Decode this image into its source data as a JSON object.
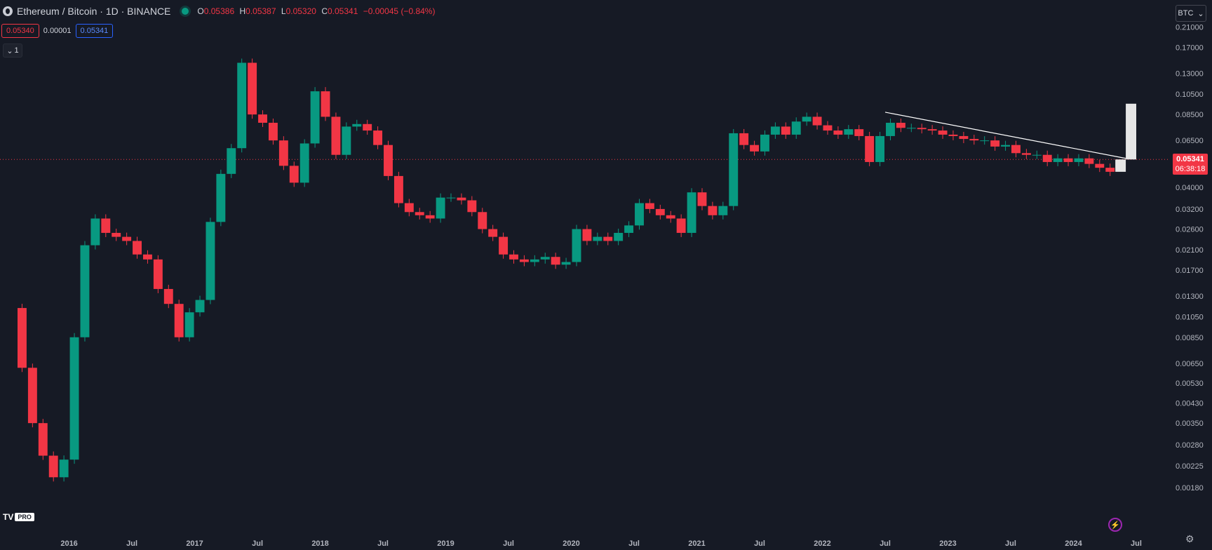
{
  "header": {
    "symbol_title": "Ethereum / Bitcoin · 1D · BINANCE",
    "ohlc": {
      "o_label": "O",
      "o": "0.05386",
      "h_label": "H",
      "h": "0.05387",
      "l_label": "L",
      "l": "0.05320",
      "c_label": "C",
      "c": "0.05341",
      "change": "−0.00045 (−0.84%)"
    },
    "sell_price": "0.05340",
    "spread": "0.00001",
    "buy_price": "0.05341",
    "indicators_toggle": "1",
    "currency": "BTC"
  },
  "last_price": {
    "value": "0.05341",
    "countdown": "06:38:18"
  },
  "logo": {
    "text": "TV",
    "badge": "PRO"
  },
  "icons": [
    "symbol-logo-icon",
    "live-status-icon",
    "chevron-down-icon",
    "settings-gear-icon",
    "flash-icon",
    "tradingview-logo"
  ],
  "colors": {
    "background": "#161a25",
    "up": "#089981",
    "down": "#f23645",
    "projection": "#ffffff",
    "trendline": "#ffffff"
  },
  "chart_data": {
    "type": "line",
    "title": "Ethereum / Bitcoin · 1D · BINANCE",
    "scale": "log",
    "ylim": [
      0.0015,
      0.24
    ],
    "y_ticks": [
      "0.21000",
      "0.17000",
      "0.13000",
      "0.10500",
      "0.08500",
      "0.06500",
      "0.05341",
      "0.04000",
      "0.03200",
      "0.02600",
      "0.02100",
      "0.01700",
      "0.01300",
      "0.01050",
      "0.00850",
      "0.00650",
      "0.00530",
      "0.00430",
      "0.00350",
      "0.00280",
      "0.00225",
      "0.00180"
    ],
    "x_ticks": [
      "2016",
      "Jul",
      "2017",
      "Jul",
      "2018",
      "Jul",
      "2019",
      "Jul",
      "2020",
      "Jul",
      "2021",
      "Jul",
      "2022",
      "Jul",
      "2023",
      "Jul",
      "2024",
      "Jul"
    ],
    "series": [
      {
        "x": [
          "2015-08",
          "2015-09",
          "2015-10",
          "2015-11",
          "2015-12",
          "2016-01",
          "2016-02",
          "2016-03",
          "2016-04",
          "2016-05",
          "2016-06",
          "2016-07",
          "2016-08",
          "2016-09",
          "2016-10",
          "2016-11",
          "2016-12",
          "2017-01",
          "2017-02",
          "2017-03",
          "2017-04",
          "2017-05",
          "2017-06",
          "2017-07",
          "2017-08",
          "2017-09",
          "2017-10",
          "2017-11",
          "2017-12",
          "2018-01",
          "2018-02",
          "2018-03",
          "2018-04",
          "2018-05",
          "2018-06",
          "2018-07",
          "2018-08",
          "2018-09",
          "2018-10",
          "2018-11",
          "2018-12",
          "2019-01",
          "2019-02",
          "2019-03",
          "2019-04",
          "2019-05",
          "2019-06",
          "2019-07",
          "2019-08",
          "2019-09",
          "2019-10",
          "2019-11",
          "2019-12",
          "2020-01",
          "2020-02",
          "2020-03",
          "2020-04",
          "2020-05",
          "2020-06",
          "2020-07",
          "2020-08",
          "2020-09",
          "2020-10",
          "2020-11",
          "2020-12",
          "2021-01",
          "2021-02",
          "2021-03",
          "2021-04",
          "2021-05",
          "2021-06",
          "2021-07",
          "2021-08",
          "2021-09",
          "2021-10",
          "2021-11",
          "2021-12",
          "2022-01",
          "2022-02",
          "2022-03",
          "2022-04",
          "2022-05",
          "2022-06",
          "2022-07",
          "2022-08",
          "2022-09",
          "2022-10",
          "2022-11",
          "2022-12",
          "2023-01",
          "2023-02",
          "2023-03",
          "2023-04",
          "2023-05",
          "2023-06",
          "2023-07",
          "2023-08",
          "2023-09",
          "2023-10",
          "2023-11",
          "2023-12",
          "2024-01",
          "2024-02",
          "2024-03",
          "2024-04",
          "2024-05"
        ],
        "values": [
          0.0115,
          0.0062,
          0.0035,
          0.0025,
          0.002,
          0.0024,
          0.0085,
          0.022,
          0.029,
          0.025,
          0.024,
          0.023,
          0.02,
          0.019,
          0.014,
          0.012,
          0.0085,
          0.011,
          0.0125,
          0.028,
          0.046,
          0.06,
          0.145,
          0.085,
          0.078,
          0.065,
          0.05,
          0.042,
          0.063,
          0.108,
          0.083,
          0.056,
          0.075,
          0.077,
          0.072,
          0.062,
          0.045,
          0.034,
          0.031,
          0.03,
          0.029,
          0.036,
          0.036,
          0.035,
          0.031,
          0.026,
          0.024,
          0.02,
          0.019,
          0.0185,
          0.019,
          0.0195,
          0.018,
          0.0185,
          0.026,
          0.023,
          0.024,
          0.023,
          0.025,
          0.027,
          0.034,
          0.032,
          0.03,
          0.029,
          0.025,
          0.038,
          0.033,
          0.03,
          0.033,
          0.07,
          0.062,
          0.058,
          0.069,
          0.075,
          0.069,
          0.079,
          0.083,
          0.076,
          0.072,
          0.069,
          0.073,
          0.068,
          0.052,
          0.068,
          0.078,
          0.074,
          0.074,
          0.073,
          0.072,
          0.069,
          0.068,
          0.066,
          0.065,
          0.065,
          0.061,
          0.062,
          0.057,
          0.056,
          0.056,
          0.052,
          0.054,
          0.052,
          0.054,
          0.051,
          0.049,
          0.047
        ]
      },
      {
        "name": "",
        "x": [
          "2024-05",
          "2024-06",
          "2024-07"
        ],
        "values": [
          0.047,
          0.0534,
          0.095
        ]
      }
    ],
    "trendline": {
      "x": [
        "2022-07",
        "2024-06"
      ],
      "values": [
        0.087,
        0.054
      ]
    },
    "grid": false,
    "last_value": 0.05341
  }
}
